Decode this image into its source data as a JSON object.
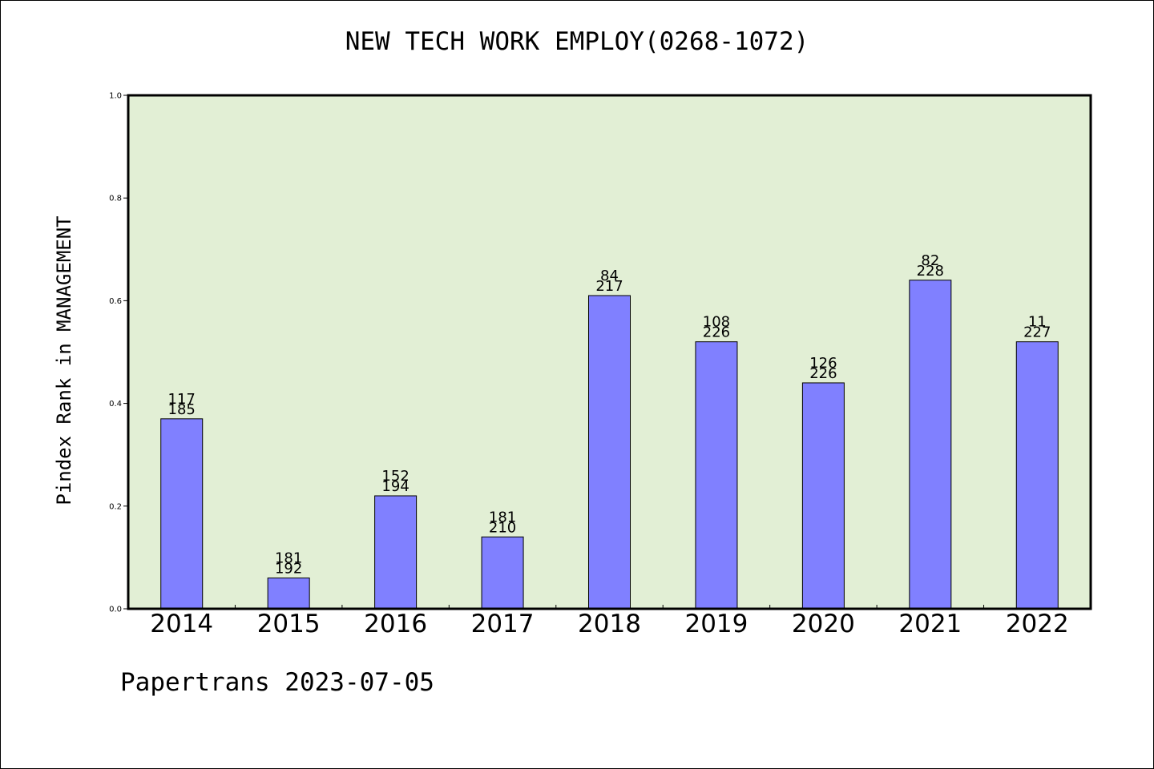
{
  "footer": {
    "text": "Papertrans 2023-07-05"
  },
  "colors": {
    "plot_background": "#e2efd5",
    "bar_fill": "#8080ff",
    "bar_stroke": "#000000"
  },
  "chart_data": {
    "type": "bar",
    "title": "NEW TECH WORK EMPLOY(0268-1072)",
    "xlabel": "",
    "ylabel": "Pindex Rank in MANAGEMENT",
    "ylim": [
      0,
      1.0
    ],
    "yticks": [
      "0.0",
      "0.2",
      "0.4",
      "0.6",
      "0.8",
      "1.0"
    ],
    "grid": false,
    "categories": [
      "2014",
      "2015",
      "2016",
      "2017",
      "2018",
      "2019",
      "2020",
      "2021",
      "2022"
    ],
    "values": [
      0.37,
      0.06,
      0.22,
      0.14,
      0.61,
      0.52,
      0.44,
      0.64,
      0.52
    ],
    "annotations_top": [
      "117",
      "181",
      "152",
      "181",
      "84",
      "108",
      "126",
      "82",
      "11"
    ],
    "annotations_bottom": [
      "185",
      "192",
      "194",
      "210",
      "217",
      "226",
      "226",
      "228",
      "227"
    ]
  }
}
